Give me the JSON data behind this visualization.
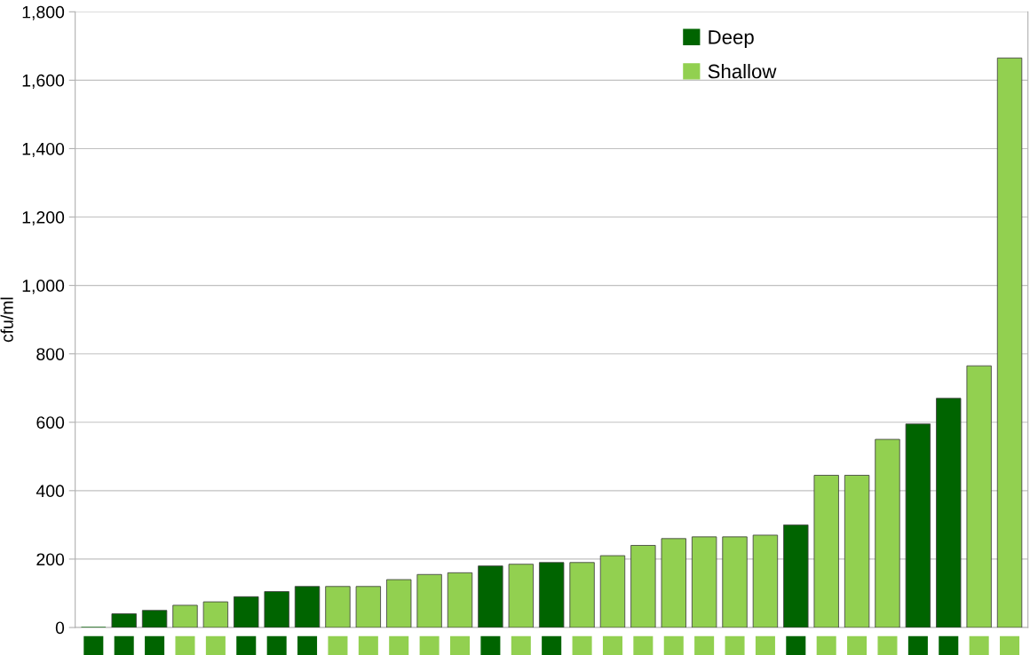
{
  "chart_data": {
    "type": "bar",
    "ylabel": "cfu/ml",
    "categories": [
      null,
      null,
      null,
      null,
      null,
      null,
      null,
      null,
      null,
      null,
      null,
      null,
      null,
      null,
      null,
      null,
      null,
      null,
      null,
      null,
      null,
      null,
      null,
      null,
      null,
      null,
      null,
      null,
      null,
      null,
      null
    ],
    "series": [
      {
        "name": "Deep",
        "color": "#006400",
        "values": [
          0,
          40,
          50,
          null,
          null,
          90,
          105,
          120,
          null,
          null,
          null,
          null,
          null,
          180,
          null,
          190,
          null,
          null,
          null,
          null,
          null,
          null,
          null,
          300,
          null,
          null,
          null,
          595,
          670,
          null,
          null
        ]
      },
      {
        "name": "Shallow",
        "color": "#92d050",
        "values": [
          null,
          null,
          null,
          65,
          75,
          null,
          null,
          null,
          120,
          120,
          140,
          155,
          160,
          null,
          185,
          null,
          190,
          210,
          240,
          260,
          265,
          265,
          270,
          null,
          445,
          445,
          550,
          null,
          null,
          765,
          1665
        ]
      }
    ],
    "ylim": [
      0,
      1800
    ],
    "yticks": [
      {
        "value": 0,
        "label": "0"
      },
      {
        "value": 200,
        "label": "200"
      },
      {
        "value": 400,
        "label": "400"
      },
      {
        "value": 600,
        "label": "600"
      },
      {
        "value": 800,
        "label": "800"
      },
      {
        "value": 1000,
        "label": "1,000"
      },
      {
        "value": 1200,
        "label": "1,200"
      },
      {
        "value": 1400,
        "label": "1,400"
      },
      {
        "value": 1600,
        "label": "1,600"
      },
      {
        "value": 1800,
        "label": "1,800"
      }
    ],
    "grid": "y",
    "legend": "top right"
  }
}
